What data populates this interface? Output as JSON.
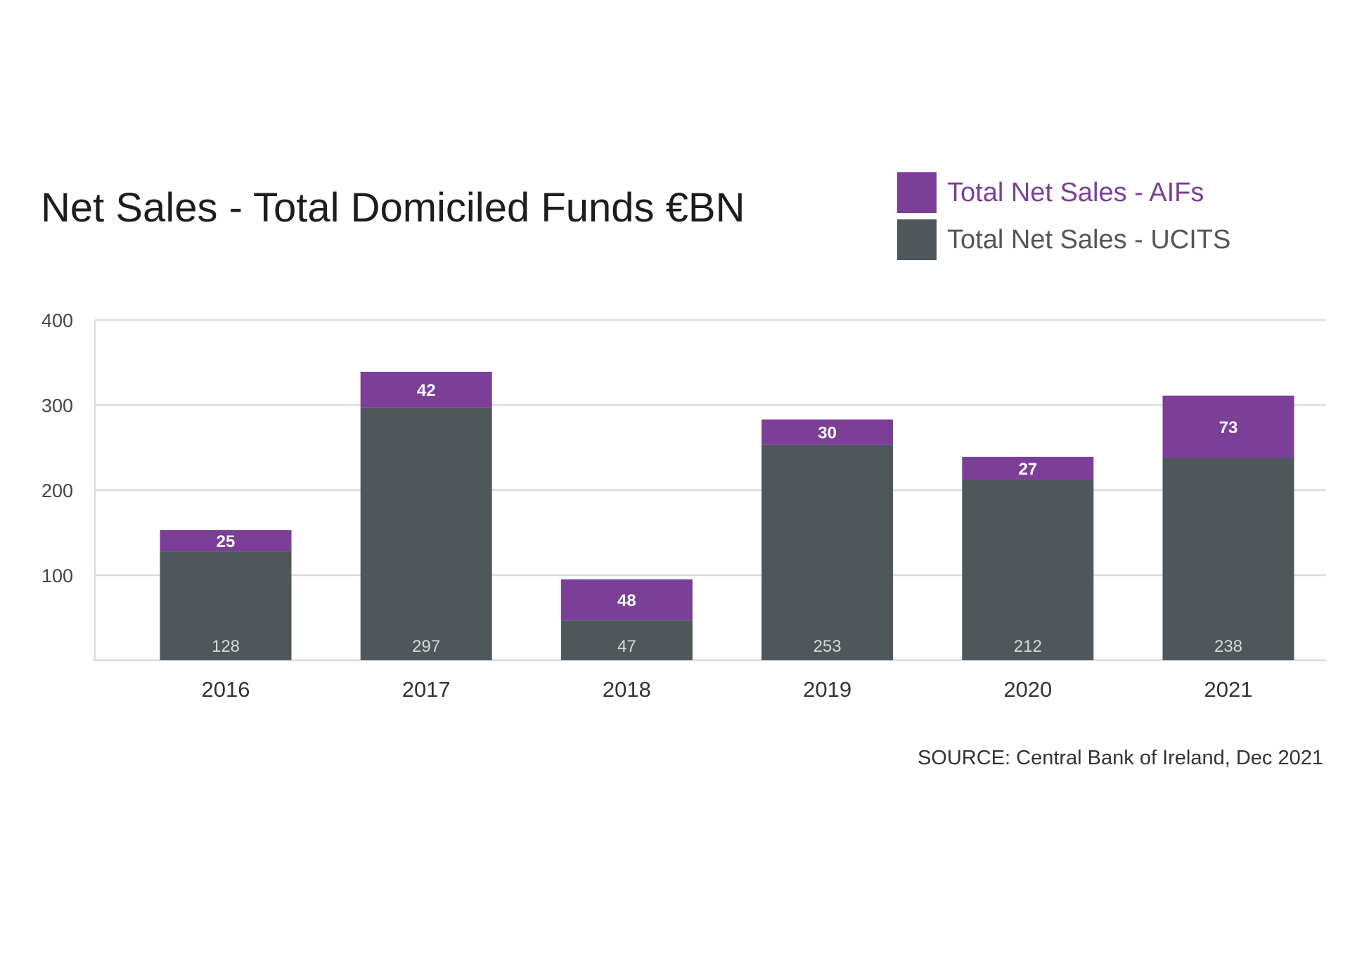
{
  "chart_data": {
    "type": "bar",
    "stacked": true,
    "title": "Net Sales - Total Domiciled Funds €BN",
    "categories": [
      "2016",
      "2017",
      "2018",
      "2019",
      "2020",
      "2021"
    ],
    "series": [
      {
        "name": "Total Net Sales - UCITS",
        "values": [
          128,
          297,
          47,
          253,
          212,
          238
        ],
        "color": "#4f575a"
      },
      {
        "name": "Total Net Sales - AIFs",
        "values": [
          25,
          42,
          48,
          30,
          27,
          73
        ],
        "color": "#7b3f98"
      }
    ],
    "yticks": [
      100,
      200,
      300,
      400
    ],
    "ylim": [
      0,
      400
    ],
    "grid": true,
    "legend": "top-right",
    "source": "SOURCE: Central Bank of Ireland, Dec 2021"
  }
}
